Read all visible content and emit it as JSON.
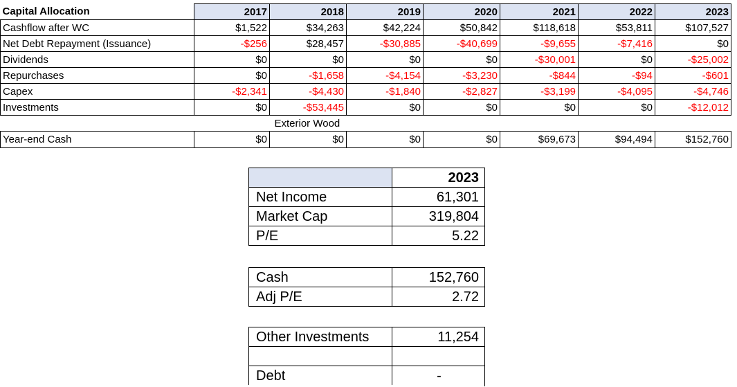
{
  "main_table": {
    "title": "Capital Allocation",
    "years": [
      "2017",
      "2018",
      "2019",
      "2020",
      "2021",
      "2022",
      "2023"
    ],
    "rows": [
      {
        "label": "Cashflow after WC",
        "values": [
          "$1,522",
          "$34,263",
          "$42,224",
          "$50,842",
          "$118,618",
          "$53,811",
          "$107,527"
        ]
      },
      {
        "label": "Net Debt Repayment (Issuance)",
        "values": [
          "-$256",
          "$28,457",
          "-$30,885",
          "-$40,699",
          "-$9,655",
          "-$7,416",
          "$0"
        ]
      },
      {
        "label": "Dividends",
        "values": [
          "$0",
          "$0",
          "$0",
          "$0",
          "-$30,001",
          "$0",
          "-$25,002"
        ]
      },
      {
        "label": "Repurchases",
        "values": [
          "$0",
          "-$1,658",
          "-$4,154",
          "-$3,230",
          "-$844",
          "-$94",
          "-$601"
        ]
      },
      {
        "label": "Capex",
        "values": [
          "-$2,341",
          "-$4,430",
          "-$1,840",
          "-$2,827",
          "-$3,199",
          "-$4,095",
          "-$4,746"
        ]
      },
      {
        "label": "Investments",
        "values": [
          "$0",
          "-$53,445",
          "$0",
          "$0",
          "$0",
          "$0",
          "-$12,012"
        ]
      }
    ],
    "note": "Exterior Wood",
    "year_end": {
      "label": "Year-end Cash",
      "values": [
        "$0",
        "$0",
        "$0",
        "$0",
        "$69,673",
        "$94,494",
        "$152,760"
      ]
    }
  },
  "summary_1": {
    "year": "2023",
    "rows": [
      {
        "label": "Net Income",
        "value": "61,301"
      },
      {
        "label": "Market Cap",
        "value": "319,804"
      },
      {
        "label": "P/E",
        "value": "5.22"
      }
    ]
  },
  "summary_2": {
    "rows": [
      {
        "label": "Cash",
        "value": "152,760"
      },
      {
        "label": "Adj P/E",
        "value": "2.72"
      }
    ]
  },
  "summary_3": {
    "rows": [
      {
        "label": "Other Investments",
        "value": "11,254"
      },
      {
        "label": "",
        "value": ""
      },
      {
        "label": "Debt",
        "value": "-"
      }
    ]
  },
  "colors": {
    "header_fill": "#dce3f2",
    "negative": "#ff0000"
  }
}
